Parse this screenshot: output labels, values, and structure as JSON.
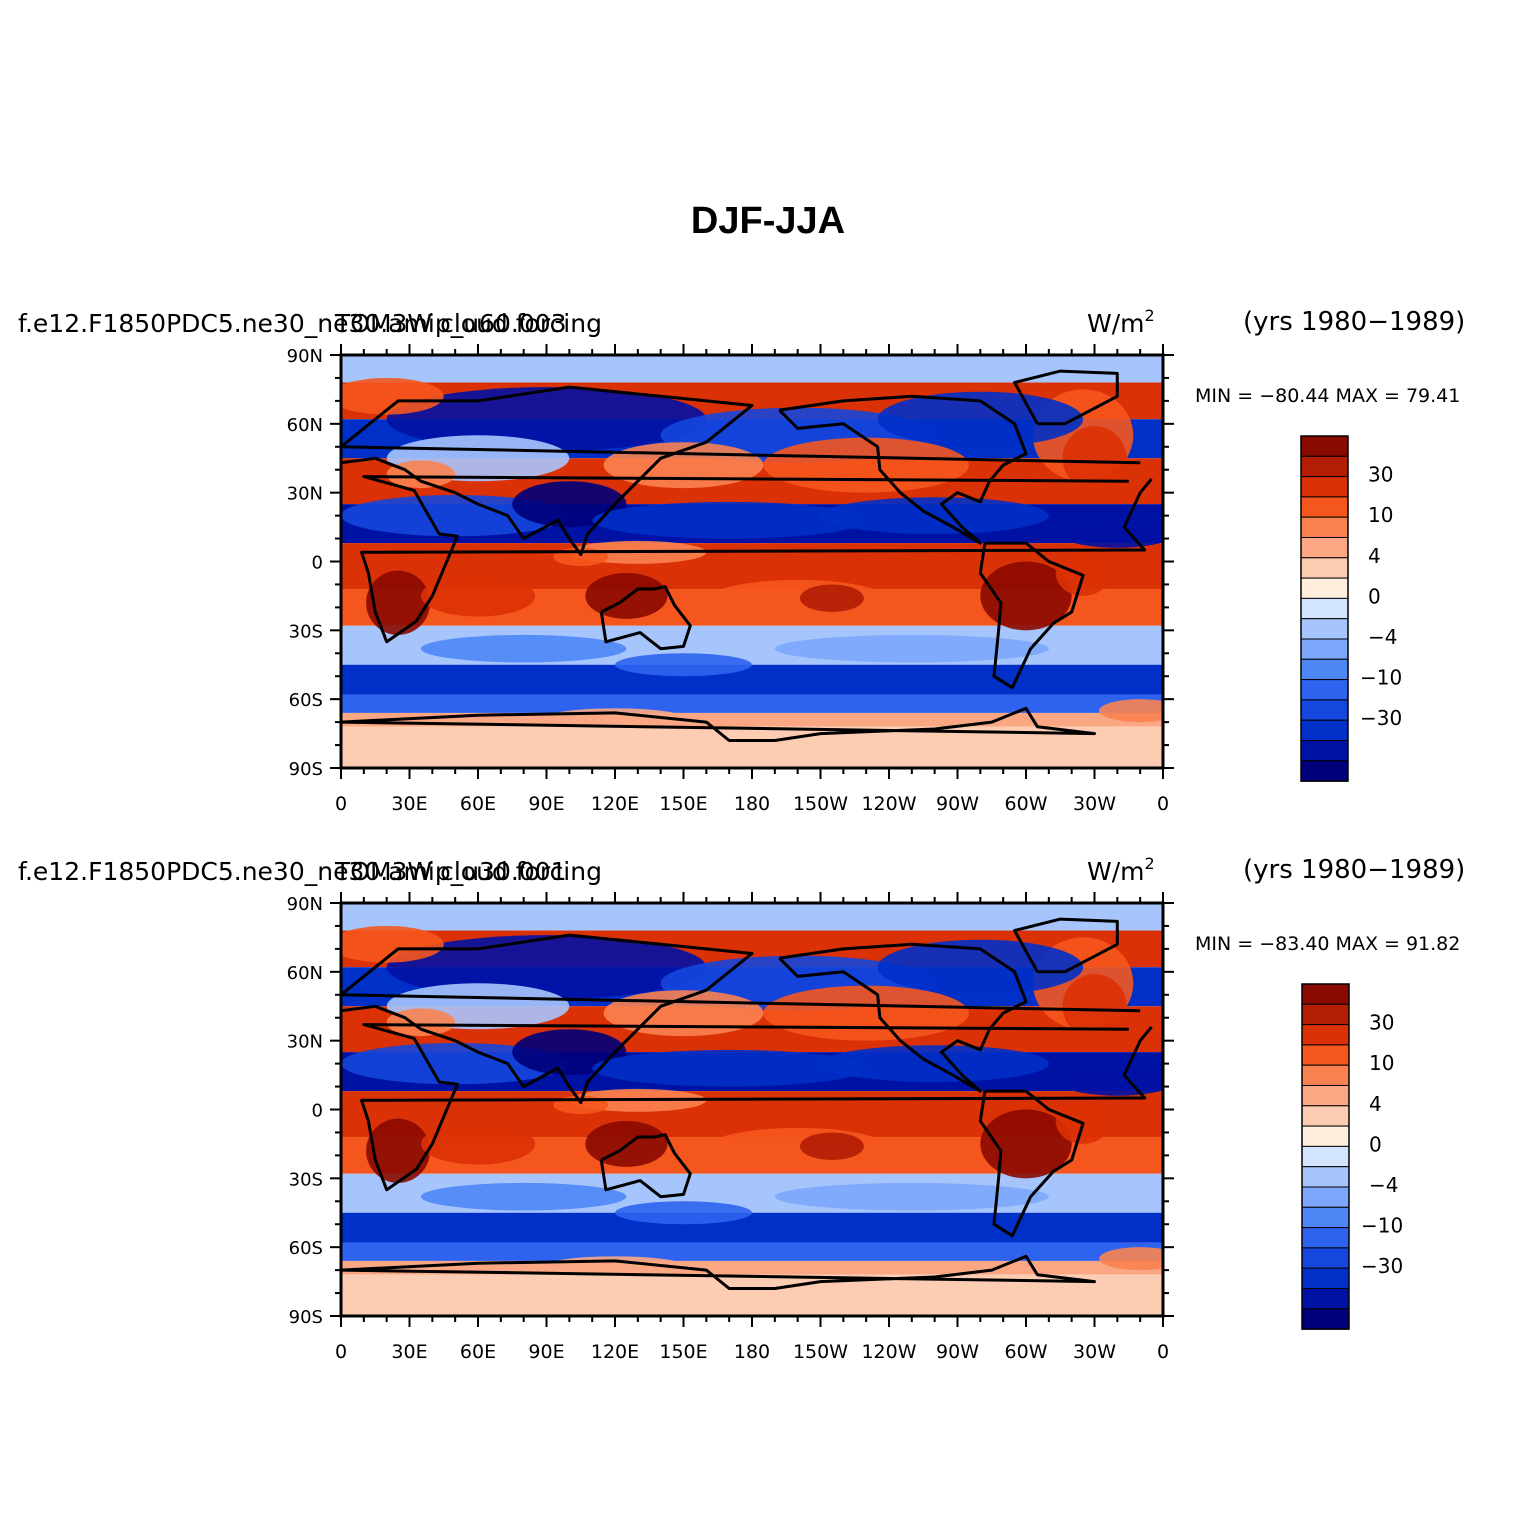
{
  "title": "DJF-JJA",
  "colorbar": {
    "colors": [
      "#00007a",
      "#0012a4",
      "#0030c8",
      "#1546dd",
      "#2d63ee",
      "#4f86f6",
      "#7ca6fb",
      "#a7c5fd",
      "#d2e4fe",
      "#ffeedd",
      "#fdcdb3",
      "#fba783",
      "#f98350",
      "#f5561e",
      "#db3106",
      "#b31d03",
      "#8a0a00"
    ],
    "tick_labels": [
      "30",
      "10",
      "4",
      "0",
      "−4",
      "−10",
      "−30"
    ]
  },
  "lat_labels": [
    "90N",
    "60N",
    "30N",
    "0",
    "30S",
    "60S",
    "90S"
  ],
  "lon_labels": [
    "0",
    "30E",
    "60E",
    "90E",
    "120E",
    "150E",
    "180",
    "150W",
    "120W",
    "90W",
    "60W",
    "30W",
    "0"
  ],
  "panels": [
    {
      "id": "top",
      "case_left": "f.e12.F1850PDC5.ne30_ne30.amip_u60.003",
      "case_overlay": "TOM3W cloud forcing",
      "units": "W/m",
      "units_exp": "2",
      "years": "(yrs 1980−1989)",
      "stats": "MIN = −80.44  MAX =   79.41"
    },
    {
      "id": "bottom",
      "case_left": "f.e12.F1850PDC5.ne30_ne30.amip_u30.001",
      "case_overlay": "TOM3W cloud forcing",
      "units": "W/m",
      "units_exp": "2",
      "years": "(yrs 1980−1989)",
      "stats": "MIN = −83.40  MAX =   91.82"
    }
  ],
  "chart_data": [
    {
      "type": "heatmap",
      "subtitle": "f.e12.F1850PDC5.ne30_ne30.amip_u60.003 TOM3W cloud forcing",
      "units": "W/m2",
      "period": "1980-1989",
      "min": -80.44,
      "max": 79.41,
      "xlim": [
        0,
        360
      ],
      "ylim": [
        -90,
        90
      ],
      "legend_levels": [
        30,
        10,
        4,
        0,
        -4,
        -10,
        -30
      ]
    },
    {
      "type": "heatmap",
      "subtitle": "f.e12.F1850PDC5.ne30_ne30.amip_u30.001 TOM3W cloud forcing",
      "units": "W/m2",
      "period": "1980-1989",
      "min": -83.4,
      "max": 91.82,
      "xlim": [
        0,
        360
      ],
      "ylim": [
        -90,
        90
      ],
      "legend_levels": [
        30,
        10,
        4,
        0,
        -4,
        -10,
        -30
      ]
    }
  ]
}
